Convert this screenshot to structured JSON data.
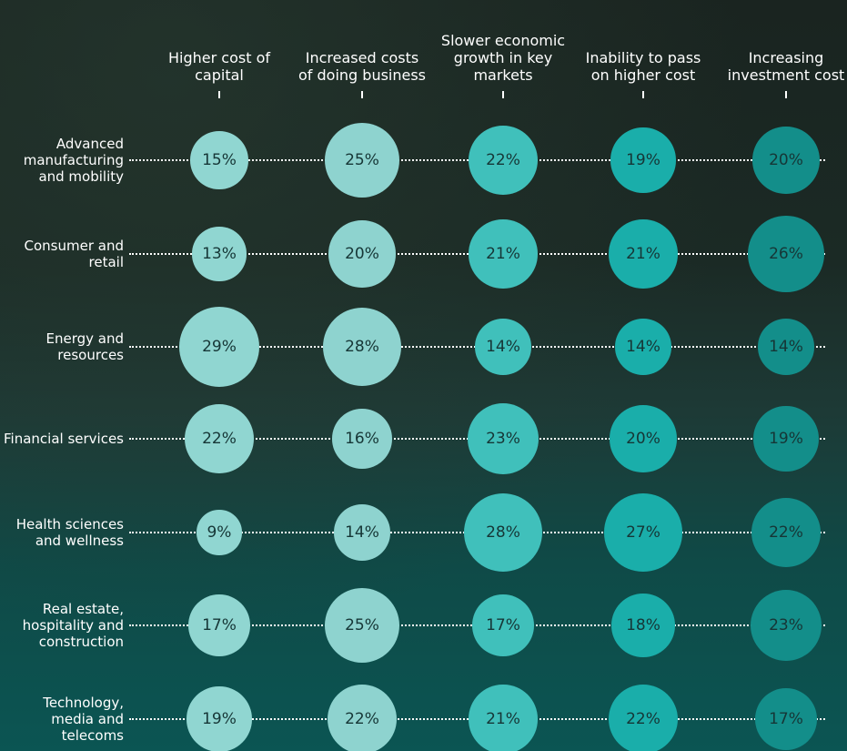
{
  "chart_data": {
    "type": "bubble",
    "categories": [
      "Higher cost of capital",
      "Increased costs of doing business",
      "Slower economic growth in key markets",
      "Inability to pass on higher cost",
      "Increasing investment cost"
    ],
    "colors": [
      "#90d6d1",
      "#8ed3cf",
      "#40c0bb",
      "#1aaeaa",
      "#138e8a"
    ],
    "series": [
      {
        "name": "Advanced manufacturing and mobility",
        "values": [
          15,
          25,
          22,
          19,
          20
        ],
        "value_labels": [
          "15%",
          "25%",
          "22%",
          "19%",
          "20%"
        ]
      },
      {
        "name": "Consumer and retail",
        "values": [
          13,
          20,
          21,
          21,
          26
        ],
        "value_labels": [
          "13%",
          "20%",
          "21%",
          "21%",
          "26%"
        ]
      },
      {
        "name": "Energy and resources",
        "values": [
          29,
          28,
          14,
          14,
          14
        ],
        "value_labels": [
          "29%",
          "28%",
          "14%",
          "14%",
          "14%"
        ]
      },
      {
        "name": "Financial services",
        "values": [
          22,
          16,
          23,
          20,
          19
        ],
        "value_labels": [
          "22%",
          "16%",
          "23%",
          "20%",
          "19%"
        ]
      },
      {
        "name": "Health sciences and wellness",
        "values": [
          9,
          14,
          28,
          27,
          22
        ],
        "value_labels": [
          "9%",
          "14%",
          "28%",
          "27%",
          "22%"
        ]
      },
      {
        "name": "Real estate, hospitality and construction",
        "values": [
          17,
          25,
          17,
          18,
          23
        ],
        "value_labels": [
          "17%",
          "25%",
          "17%",
          "18%",
          "23%"
        ]
      },
      {
        "name": "Technology, media and telecoms",
        "values": [
          19,
          22,
          21,
          22,
          17
        ],
        "value_labels": [
          "19%",
          "22%",
          "21%",
          "22%",
          "17%"
        ]
      }
    ]
  }
}
